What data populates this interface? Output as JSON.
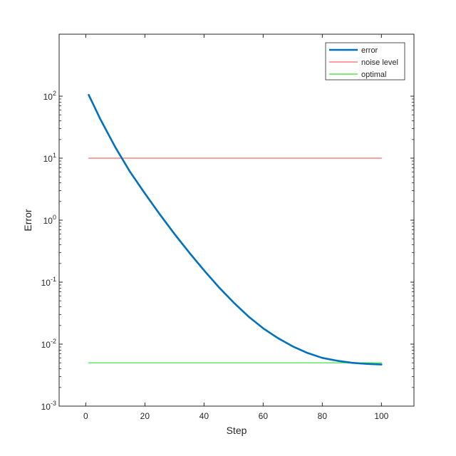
{
  "chart_data": {
    "type": "line",
    "title": "",
    "xlabel": "Step",
    "ylabel": "Error",
    "xlim": [
      -9,
      111
    ],
    "ylim": [
      0.001,
      1000
    ],
    "yscale": "log",
    "grid": false,
    "legend_position": "top-right",
    "x_ticks": [
      0,
      20,
      40,
      60,
      80,
      100
    ],
    "y_ticks": [
      {
        "value": 0.001,
        "base": "10",
        "exp": "-3"
      },
      {
        "value": 0.01,
        "base": "10",
        "exp": "-2"
      },
      {
        "value": 0.1,
        "base": "10",
        "exp": "-1"
      },
      {
        "value": 1,
        "base": "10",
        "exp": "0"
      },
      {
        "value": 10,
        "base": "10",
        "exp": "1"
      },
      {
        "value": 100,
        "base": "10",
        "exp": "2"
      }
    ],
    "series": [
      {
        "name": "error",
        "color": "#0072BD",
        "style": "thick",
        "x": [
          1,
          5,
          10,
          15,
          20,
          25,
          30,
          35,
          40,
          45,
          50,
          55,
          60,
          65,
          70,
          75,
          80,
          85,
          90,
          95,
          100
        ],
        "y": [
          105,
          42,
          15,
          6,
          2.7,
          1.25,
          0.6,
          0.3,
          0.155,
          0.083,
          0.047,
          0.028,
          0.018,
          0.0125,
          0.0092,
          0.0072,
          0.006,
          0.0054,
          0.005,
          0.0048,
          0.0047
        ]
      },
      {
        "name": "noise level",
        "color": "#FF6666",
        "style": "thin",
        "x": [
          1,
          100
        ],
        "y": [
          10,
          10
        ]
      },
      {
        "name": "optimal",
        "color": "#33DD33",
        "style": "thin",
        "x": [
          1,
          100
        ],
        "y": [
          0.005,
          0.005
        ]
      }
    ]
  }
}
